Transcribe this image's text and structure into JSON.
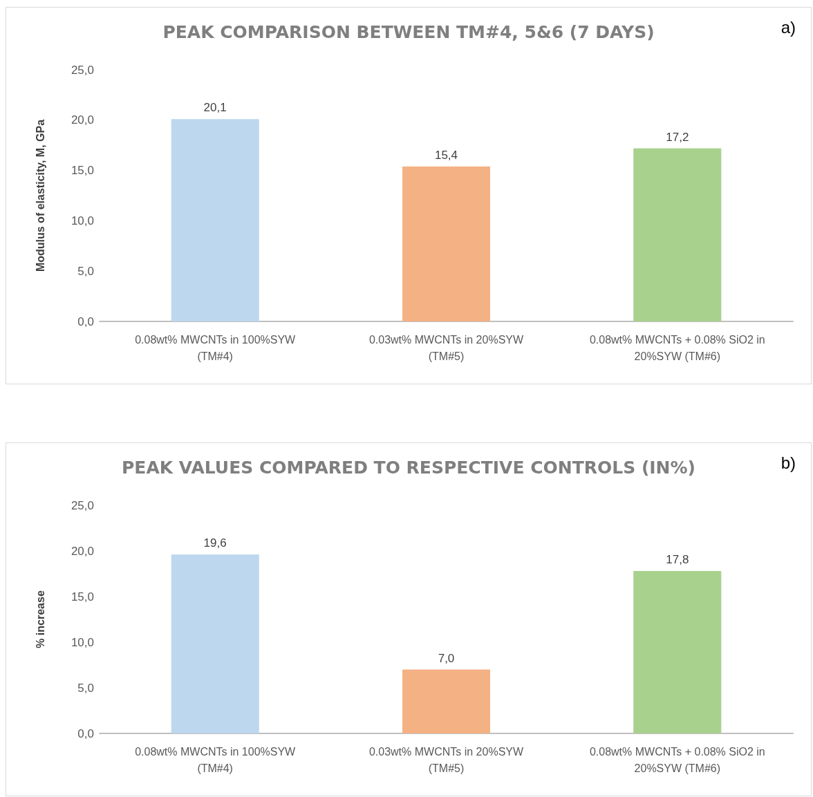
{
  "chart_data": [
    {
      "type": "bar",
      "title": "PEAK COMPARISON BETWEEN TM#4, 5&6 (7 DAYS)",
      "ylabel": "Modulus of elasticity, M, GPa",
      "annotations": [
        "a)"
      ],
      "categories": [
        "0.08wt% MWCNTs in 100%SYW\n(TM#4)",
        "0.03wt% MWCNTs in 20%SYW\n(TM#5)",
        "0.08wt% MWCNTs + 0.08% SiO2 in\n20%SYW (TM#6)"
      ],
      "values": [
        20.1,
        15.4,
        17.2
      ],
      "value_labels": [
        "20,1",
        "15,4",
        "17,2"
      ],
      "colors": [
        "#bdd7ee",
        "#f4b183",
        "#a9d18e"
      ],
      "ylim": [
        0,
        25
      ],
      "yticks": [
        {
          "value": 0,
          "label": "0,0"
        },
        {
          "value": 5,
          "label": "5,0"
        },
        {
          "value": 10,
          "label": "10,0"
        },
        {
          "value": 15,
          "label": "15,0"
        },
        {
          "value": 20,
          "label": "20,0"
        },
        {
          "value": 25,
          "label": "25,0"
        }
      ]
    },
    {
      "type": "bar",
      "title": "PEAK VALUES COMPARED TO RESPECTIVE CONTROLS (IN%)",
      "ylabel": "% increase",
      "annotations": [
        "b)"
      ],
      "categories": [
        "0.08wt% MWCNTs in 100%SYW\n(TM#4)",
        "0.03wt% MWCNTs in 20%SYW\n(TM#5)",
        "0.08wt% MWCNTs + 0.08% SiO2 in\n20%SYW (TM#6)"
      ],
      "values": [
        19.6,
        7.0,
        17.8
      ],
      "value_labels": [
        "19,6",
        "7,0",
        "17,8"
      ],
      "colors": [
        "#bdd7ee",
        "#f4b183",
        "#a9d18e"
      ],
      "ylim": [
        0,
        25
      ],
      "yticks": [
        {
          "value": 0,
          "label": "0,0"
        },
        {
          "value": 5,
          "label": "5,0"
        },
        {
          "value": 10,
          "label": "10,0"
        },
        {
          "value": 15,
          "label": "15,0"
        },
        {
          "value": 20,
          "label": "20,0"
        },
        {
          "value": 25,
          "label": "25,0"
        }
      ]
    }
  ]
}
